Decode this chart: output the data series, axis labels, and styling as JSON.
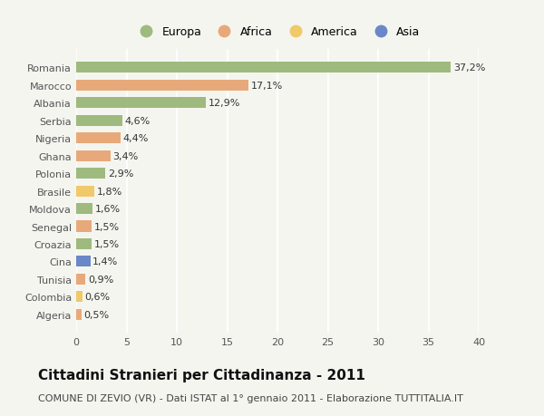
{
  "categories": [
    "Romania",
    "Marocco",
    "Albania",
    "Serbia",
    "Nigeria",
    "Ghana",
    "Polonia",
    "Brasile",
    "Moldova",
    "Senegal",
    "Croazia",
    "Cina",
    "Tunisia",
    "Colombia",
    "Algeria"
  ],
  "values": [
    37.2,
    17.1,
    12.9,
    4.6,
    4.4,
    3.4,
    2.9,
    1.8,
    1.6,
    1.5,
    1.5,
    1.4,
    0.9,
    0.6,
    0.5
  ],
  "labels": [
    "37,2%",
    "17,1%",
    "12,9%",
    "4,6%",
    "4,4%",
    "3,4%",
    "2,9%",
    "1,8%",
    "1,6%",
    "1,5%",
    "1,5%",
    "1,4%",
    "0,9%",
    "0,6%",
    "0,5%"
  ],
  "continents": [
    "Europa",
    "Africa",
    "Europa",
    "Europa",
    "Africa",
    "Africa",
    "Europa",
    "America",
    "Europa",
    "Africa",
    "Europa",
    "Asia",
    "Africa",
    "America",
    "Africa"
  ],
  "continent_colors": {
    "Europa": "#9eba7e",
    "Africa": "#e8a97a",
    "America": "#f0c96a",
    "Asia": "#6a87c8"
  },
  "legend_order": [
    "Europa",
    "Africa",
    "America",
    "Asia"
  ],
  "title": "Cittadini Stranieri per Cittadinanza - 2011",
  "subtitle": "COMUNE DI ZEVIO (VR) - Dati ISTAT al 1° gennaio 2011 - Elaborazione TUTTITALIA.IT",
  "xlim": [
    0,
    40
  ],
  "xticks": [
    0,
    5,
    10,
    15,
    20,
    25,
    30,
    35,
    40
  ],
  "background_color": "#f5f5f0",
  "grid_color": "#ffffff",
  "bar_height": 0.62,
  "title_fontsize": 11,
  "subtitle_fontsize": 8,
  "label_fontsize": 8,
  "tick_fontsize": 8,
  "legend_fontsize": 9
}
